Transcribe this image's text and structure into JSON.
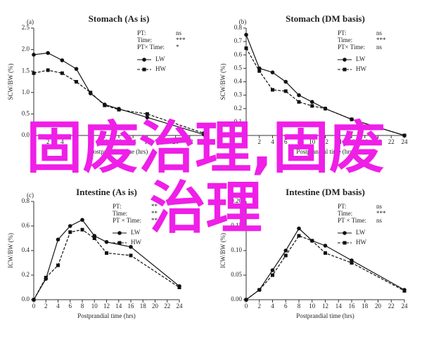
{
  "chart_data": [
    {
      "type": "line",
      "panel": "(a)",
      "title": "Stomach (As is)",
      "ylabel": "SCW/BW (%)",
      "xlabel": "Postprandial time (hrs)",
      "x": [
        0,
        2,
        4,
        6,
        8,
        10,
        12,
        16,
        24
      ],
      "xlim": [
        0,
        24
      ],
      "xticks": [
        0,
        2,
        4,
        6,
        8,
        10,
        12,
        14,
        16,
        18,
        20,
        22,
        24
      ],
      "ylim": [
        0,
        2.5
      ],
      "yticks": [
        {
          "value": 0,
          "label": "0.0"
        },
        {
          "value": 0.5,
          "label": "0.5"
        },
        {
          "value": 1,
          "label": "1.0"
        },
        {
          "value": 1.5,
          "label": "1.5"
        },
        {
          "value": 2,
          "label": "2.0"
        },
        {
          "value": 2.5,
          "label": "2.5"
        }
      ],
      "annotations": [
        [
          "PT:",
          "ns"
        ],
        [
          "Time:",
          "***"
        ],
        [
          "PT× Time:",
          "*"
        ]
      ],
      "series": [
        {
          "name": "LW",
          "color": "#111111",
          "values": [
            1.88,
            1.92,
            1.75,
            1.55,
            0.98,
            0.72,
            0.62,
            0.42,
            0.02
          ]
        },
        {
          "name": "HW",
          "color": "#111111",
          "values": [
            1.45,
            1.52,
            1.45,
            1.25,
            1.0,
            0.7,
            0.6,
            0.5,
            0.05
          ]
        }
      ]
    },
    {
      "type": "line",
      "panel": "(b)",
      "title": "Stomach (DM basis)",
      "ylabel": "SCW/BW (%)",
      "xlabel": "Postprandial time (hrs)",
      "x": [
        0,
        2,
        4,
        6,
        8,
        10,
        12,
        16,
        24
      ],
      "xlim": [
        0,
        24
      ],
      "xticks": [
        0,
        2,
        4,
        6,
        8,
        10,
        12,
        14,
        16,
        18,
        20,
        22,
        24
      ],
      "ylim": [
        0,
        0.8
      ],
      "yticks": [
        {
          "value": 0,
          "label": "0.0"
        },
        0.1,
        0.2,
        0.3,
        0.4,
        0.5,
        0.6,
        0.7,
        0.8
      ],
      "annotations": [
        [
          "PT:",
          "ns"
        ],
        [
          "Time:",
          "***"
        ],
        [
          "PT× Time:",
          "ns"
        ]
      ],
      "series": [
        {
          "name": "LW",
          "color": "#111111",
          "values": [
            0.75,
            0.5,
            0.47,
            0.4,
            0.3,
            0.25,
            0.2,
            0.12,
            0.0
          ]
        },
        {
          "name": "HW",
          "color": "#111111",
          "values": [
            0.65,
            0.48,
            0.34,
            0.33,
            0.25,
            0.22,
            0.2,
            0.12,
            0.0
          ]
        }
      ]
    },
    {
      "type": "line",
      "panel": "(c)",
      "title": "Intestine (As is)",
      "ylabel": "ICW/BW (%)",
      "xlabel": "Postprandial time (hrs)",
      "x": [
        0,
        2,
        4,
        6,
        8,
        10,
        12,
        16,
        24
      ],
      "xlim": [
        0,
        24
      ],
      "xticks": [
        0,
        2,
        4,
        6,
        8,
        10,
        12,
        14,
        16,
        18,
        20,
        22,
        24
      ],
      "ylim": [
        0,
        0.8
      ],
      "yticks": [
        {
          "value": 0,
          "label": "0.0"
        },
        0.2,
        0.4,
        0.6,
        0.8
      ],
      "annotations": [
        [
          "PT:",
          "**"
        ],
        [
          "Time:",
          "**"
        ],
        [
          "PT × Time:",
          "**"
        ]
      ],
      "series": [
        {
          "name": "LW",
          "color": "#111111",
          "values": [
            0.0,
            0.17,
            0.49,
            0.6,
            0.65,
            0.52,
            0.47,
            0.43,
            0.11
          ]
        },
        {
          "name": "HW",
          "color": "#111111",
          "values": [
            0.0,
            0.18,
            0.28,
            0.55,
            0.57,
            0.5,
            0.38,
            0.36,
            0.1
          ]
        }
      ]
    },
    {
      "type": "line",
      "panel": "(d)",
      "title": "Intestine (DM basis)",
      "ylabel": "ICW/BW (%)",
      "xlabel": "Postprandial time (hrs)",
      "x": [
        0,
        2,
        4,
        6,
        8,
        10,
        12,
        16,
        24
      ],
      "xlim": [
        0,
        24
      ],
      "xticks": [
        0,
        2,
        4,
        6,
        8,
        10,
        12,
        14,
        16,
        18,
        20,
        22,
        24
      ],
      "ylim": [
        0,
        0.2
      ],
      "yticks": [
        {
          "value": 0,
          "label": "0.00"
        },
        0.05,
        {
          "value": 0.1,
          "label": "0.10"
        },
        0.15,
        {
          "value": 0.2,
          "label": "0.20"
        }
      ],
      "annotations": [
        [
          "PT:",
          "ns"
        ],
        [
          "Time:",
          "***"
        ],
        [
          "PT × Time:",
          "ns"
        ]
      ],
      "series": [
        {
          "name": "LW",
          "color": "#111111",
          "values": [
            0.0,
            0.02,
            0.06,
            0.1,
            0.145,
            0.12,
            0.11,
            0.08,
            0.02
          ]
        },
        {
          "name": "HW",
          "color": "#111111",
          "values": [
            0.0,
            0.02,
            0.05,
            0.09,
            0.13,
            0.12,
            0.095,
            0.075,
            0.018
          ]
        }
      ]
    }
  ],
  "watermark": "固废治理,固废治理"
}
